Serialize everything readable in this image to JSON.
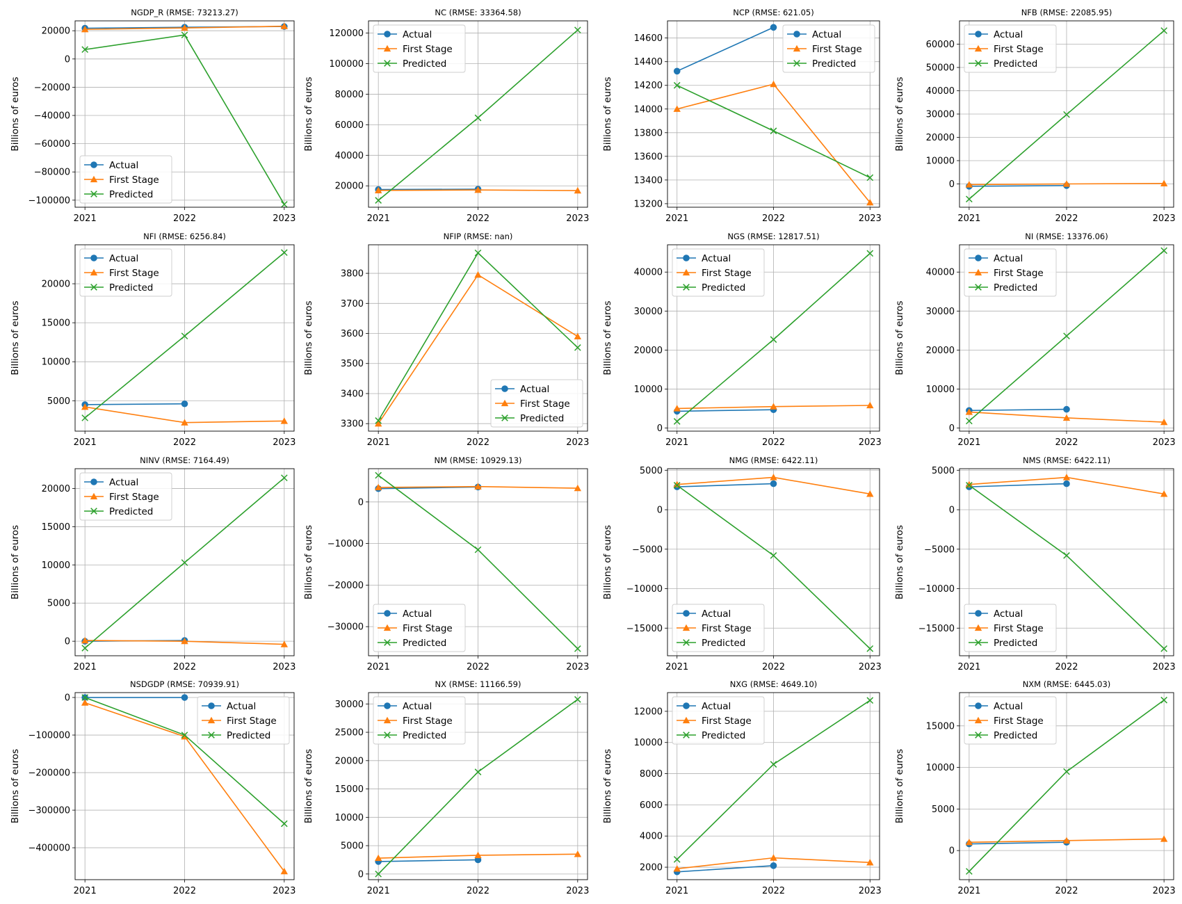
{
  "figure": {
    "ylabel": "Billions of euros",
    "legend_labels": [
      "Actual",
      "First Stage",
      "Predicted"
    ],
    "colors": {
      "actual": "#1f77b4",
      "first_stage": "#ff7f0e",
      "predicted": "#2ca02c"
    },
    "markers": {
      "actual": "circle",
      "first_stage": "triangle-up",
      "predicted": "x"
    }
  },
  "chart_data": [
    {
      "type": "line",
      "title": "NGDP_R (RMSE: 73213.27)",
      "x": [
        "2021",
        "2022",
        "2023"
      ],
      "ylim": [
        -105000,
        27000
      ],
      "yticks": [
        -100000,
        -80000,
        -60000,
        -40000,
        -20000,
        0,
        20000
      ],
      "ytick_labels": [
        "−100000",
        "−80000",
        "−60000",
        "−40000",
        "−20000",
        "0",
        "20000"
      ],
      "legend": "lower-left",
      "series": [
        {
          "name": "Actual",
          "values": [
            21800,
            22500,
            23000
          ]
        },
        {
          "name": "First Stage",
          "values": [
            21000,
            22000,
            23200
          ]
        },
        {
          "name": "Predicted",
          "values": [
            6700,
            17000,
            -103000
          ]
        }
      ]
    },
    {
      "type": "line",
      "title": "NC (RMSE: 33364.58)",
      "x": [
        "2021",
        "2022",
        "2023"
      ],
      "ylim": [
        6000,
        128000
      ],
      "yticks": [
        20000,
        40000,
        60000,
        80000,
        100000,
        120000
      ],
      "ytick_labels": [
        "20000",
        "40000",
        "60000",
        "80000",
        "100000",
        "120000"
      ],
      "legend": "top-left",
      "series": [
        {
          "name": "Actual",
          "values": [
            17600,
            17800,
            null
          ]
        },
        {
          "name": "First Stage",
          "values": [
            17000,
            17300,
            16900
          ]
        },
        {
          "name": "Predicted",
          "values": [
            10500,
            64500,
            122000
          ]
        }
      ]
    },
    {
      "type": "line",
      "title": "NCP (RMSE: 621.05)",
      "x": [
        "2021",
        "2022",
        "2023"
      ],
      "ylim": [
        13170,
        14745
      ],
      "yticks": [
        13200,
        13400,
        13600,
        13800,
        14000,
        14200,
        14400,
        14600
      ],
      "ytick_labels": [
        "13200",
        "13400",
        "13600",
        "13800",
        "14000",
        "14200",
        "14400",
        "14600"
      ],
      "legend": "top-right",
      "series": [
        {
          "name": "Actual",
          "values": [
            14320,
            14690,
            null
          ]
        },
        {
          "name": "First Stage",
          "values": [
            14000,
            14210,
            13210
          ]
        },
        {
          "name": "Predicted",
          "values": [
            14200,
            13815,
            13420
          ]
        }
      ]
    },
    {
      "type": "line",
      "title": "NFB (RMSE: 22085.95)",
      "x": [
        "2021",
        "2022",
        "2023"
      ],
      "ylim": [
        -10000,
        70000
      ],
      "yticks": [
        0,
        10000,
        20000,
        30000,
        40000,
        50000,
        60000
      ],
      "ytick_labels": [
        "0",
        "10000",
        "20000",
        "30000",
        "40000",
        "50000",
        "60000"
      ],
      "legend": "top-left",
      "series": [
        {
          "name": "Actual",
          "values": [
            -1000,
            -700,
            null
          ]
        },
        {
          "name": "First Stage",
          "values": [
            -300,
            0,
            200
          ]
        },
        {
          "name": "Predicted",
          "values": [
            -6500,
            29800,
            65800
          ]
        }
      ]
    },
    {
      "type": "line",
      "title": "NFI (RMSE: 6256.84)",
      "x": [
        "2021",
        "2022",
        "2023"
      ],
      "ylim": [
        1100,
        25000
      ],
      "yticks": [
        5000,
        10000,
        15000,
        20000
      ],
      "ytick_labels": [
        "5000",
        "10000",
        "15000",
        "20000"
      ],
      "legend": "top-left",
      "series": [
        {
          "name": "Actual",
          "values": [
            4500,
            4600,
            null
          ]
        },
        {
          "name": "First Stage",
          "values": [
            4200,
            2200,
            2400
          ]
        },
        {
          "name": "Predicted",
          "values": [
            2800,
            13300,
            24000
          ]
        }
      ]
    },
    {
      "type": "line",
      "title": "NFIP (RMSE: nan)",
      "x": [
        "2021",
        "2022",
        "2023"
      ],
      "ylim": [
        3275,
        3895
      ],
      "yticks": [
        3300,
        3400,
        3500,
        3600,
        3700,
        3800
      ],
      "ytick_labels": [
        "3300",
        "3400",
        "3500",
        "3600",
        "3700",
        "3800"
      ],
      "legend": "lower-right",
      "series": [
        {
          "name": "Actual",
          "values": [
            null,
            null,
            null
          ]
        },
        {
          "name": "First Stage",
          "values": [
            3300,
            3795,
            3590
          ]
        },
        {
          "name": "Predicted",
          "values": [
            3310,
            3868,
            3553
          ]
        }
      ]
    },
    {
      "type": "line",
      "title": "NGS (RMSE: 12817.51)",
      "x": [
        "2021",
        "2022",
        "2023"
      ],
      "ylim": [
        -800,
        47000
      ],
      "yticks": [
        0,
        10000,
        20000,
        30000,
        40000
      ],
      "ytick_labels": [
        "0",
        "10000",
        "20000",
        "30000",
        "40000"
      ],
      "legend": "top-left",
      "series": [
        {
          "name": "Actual",
          "values": [
            4300,
            4700,
            null
          ]
        },
        {
          "name": "First Stage",
          "values": [
            5000,
            5500,
            5800
          ]
        },
        {
          "name": "Predicted",
          "values": [
            1700,
            22700,
            44800
          ]
        }
      ]
    },
    {
      "type": "line",
      "title": "NI (RMSE: 13376.06)",
      "x": [
        "2021",
        "2022",
        "2023"
      ],
      "ylim": [
        -800,
        47000
      ],
      "yticks": [
        0,
        10000,
        20000,
        30000,
        40000
      ],
      "ytick_labels": [
        "0",
        "10000",
        "20000",
        "30000",
        "40000"
      ],
      "legend": "top-left",
      "series": [
        {
          "name": "Actual",
          "values": [
            4500,
            4800,
            null
          ]
        },
        {
          "name": "First Stage",
          "values": [
            4100,
            2600,
            1500
          ]
        },
        {
          "name": "Predicted",
          "values": [
            1800,
            23600,
            45500
          ]
        }
      ]
    },
    {
      "type": "line",
      "title": "NINV (RMSE: 7164.49)",
      "x": [
        "2021",
        "2022",
        "2023"
      ],
      "ylim": [
        -1900,
        22600
      ],
      "yticks": [
        0,
        5000,
        10000,
        15000,
        20000
      ],
      "ytick_labels": [
        "0",
        "5000",
        "10000",
        "15000",
        "20000"
      ],
      "legend": "top-left",
      "series": [
        {
          "name": "Actual",
          "values": [
            0,
            100,
            null
          ]
        },
        {
          "name": "First Stage",
          "values": [
            100,
            0,
            -400
          ]
        },
        {
          "name": "Predicted",
          "values": [
            -900,
            10300,
            21400
          ]
        }
      ]
    },
    {
      "type": "line",
      "title": "NM (RMSE: 10929.13)",
      "x": [
        "2021",
        "2022",
        "2023"
      ],
      "ylim": [
        -37000,
        8000
      ],
      "yticks": [
        -30000,
        -20000,
        -10000,
        0
      ],
      "ytick_labels": [
        "−30000",
        "−20000",
        "−10000",
        "0"
      ],
      "legend": "lower-left",
      "series": [
        {
          "name": "Actual",
          "values": [
            3200,
            3600,
            null
          ]
        },
        {
          "name": "First Stage",
          "values": [
            3500,
            3700,
            3300
          ]
        },
        {
          "name": "Predicted",
          "values": [
            6400,
            -11500,
            -35300
          ]
        }
      ]
    },
    {
      "type": "line",
      "title": "NMG (RMSE: 6422.11)",
      "x": [
        "2021",
        "2022",
        "2023"
      ],
      "ylim": [
        -18500,
        5200
      ],
      "yticks": [
        -15000,
        -10000,
        -5000,
        0,
        5000
      ],
      "ytick_labels": [
        "−15000",
        "−10000",
        "−5000",
        "0",
        "5000"
      ],
      "legend": "lower-left",
      "series": [
        {
          "name": "Actual",
          "values": [
            2900,
            3300,
            null
          ]
        },
        {
          "name": "First Stage",
          "values": [
            3200,
            4100,
            2000
          ]
        },
        {
          "name": "Predicted",
          "values": [
            3100,
            -5800,
            -17600
          ]
        }
      ]
    },
    {
      "type": "line",
      "title": "NMS (RMSE: 6422.11)",
      "x": [
        "2021",
        "2022",
        "2023"
      ],
      "ylim": [
        -18500,
        5200
      ],
      "yticks": [
        -15000,
        -10000,
        -5000,
        0,
        5000
      ],
      "ytick_labels": [
        "−15000",
        "−10000",
        "−5000",
        "0",
        "5000"
      ],
      "legend": "lower-left",
      "series": [
        {
          "name": "Actual",
          "values": [
            2900,
            3300,
            null
          ]
        },
        {
          "name": "First Stage",
          "values": [
            3200,
            4100,
            2000
          ]
        },
        {
          "name": "Predicted",
          "values": [
            3100,
            -5800,
            -17600
          ]
        }
      ]
    },
    {
      "type": "line",
      "title": "NSDGDP (RMSE: 70939.91)",
      "x": [
        "2021",
        "2022",
        "2023"
      ],
      "ylim": [
        -485000,
        13000
      ],
      "yticks": [
        -400000,
        -300000,
        -200000,
        -100000,
        0
      ],
      "ytick_labels": [
        "−400000",
        "−300000",
        "−200000",
        "−100000",
        "0"
      ],
      "legend": "top-right",
      "series": [
        {
          "name": "Actual",
          "values": [
            0,
            0,
            null
          ]
        },
        {
          "name": "First Stage",
          "values": [
            -14000,
            -104000,
            -463000
          ]
        },
        {
          "name": "Predicted",
          "values": [
            0,
            -100000,
            -336000
          ]
        }
      ]
    },
    {
      "type": "line",
      "title": "NX (RMSE: 11166.59)",
      "x": [
        "2021",
        "2022",
        "2023"
      ],
      "ylim": [
        -1000,
        32000
      ],
      "yticks": [
        0,
        5000,
        10000,
        15000,
        20000,
        25000,
        30000
      ],
      "ytick_labels": [
        "0",
        "5000",
        "10000",
        "15000",
        "20000",
        "25000",
        "30000"
      ],
      "legend": "top-left",
      "series": [
        {
          "name": "Actual",
          "values": [
            2200,
            2500,
            null
          ]
        },
        {
          "name": "First Stage",
          "values": [
            2800,
            3300,
            3500
          ]
        },
        {
          "name": "Predicted",
          "values": [
            0,
            18000,
            30800
          ]
        }
      ]
    },
    {
      "type": "line",
      "title": "NXG (RMSE: 4649.10)",
      "x": [
        "2021",
        "2022",
        "2023"
      ],
      "ylim": [
        1200,
        13200
      ],
      "yticks": [
        2000,
        4000,
        6000,
        8000,
        10000,
        12000
      ],
      "ytick_labels": [
        "2000",
        "4000",
        "6000",
        "8000",
        "10000",
        "12000"
      ],
      "legend": "top-left",
      "series": [
        {
          "name": "Actual",
          "values": [
            1700,
            2100,
            null
          ]
        },
        {
          "name": "First Stage",
          "values": [
            1900,
            2600,
            2300
          ]
        },
        {
          "name": "Predicted",
          "values": [
            2500,
            8600,
            12700
          ]
        }
      ]
    },
    {
      "type": "line",
      "title": "NXM (RMSE: 6445.03)",
      "x": [
        "2021",
        "2022",
        "2023"
      ],
      "ylim": [
        -3500,
        19000
      ],
      "yticks": [
        0,
        5000,
        10000,
        15000
      ],
      "ytick_labels": [
        "0",
        "5000",
        "10000",
        "15000"
      ],
      "legend": "top-left",
      "series": [
        {
          "name": "Actual",
          "values": [
            800,
            1000,
            null
          ]
        },
        {
          "name": "First Stage",
          "values": [
            1000,
            1200,
            1400
          ]
        },
        {
          "name": "Predicted",
          "values": [
            -2500,
            9500,
            18100
          ]
        }
      ]
    }
  ]
}
